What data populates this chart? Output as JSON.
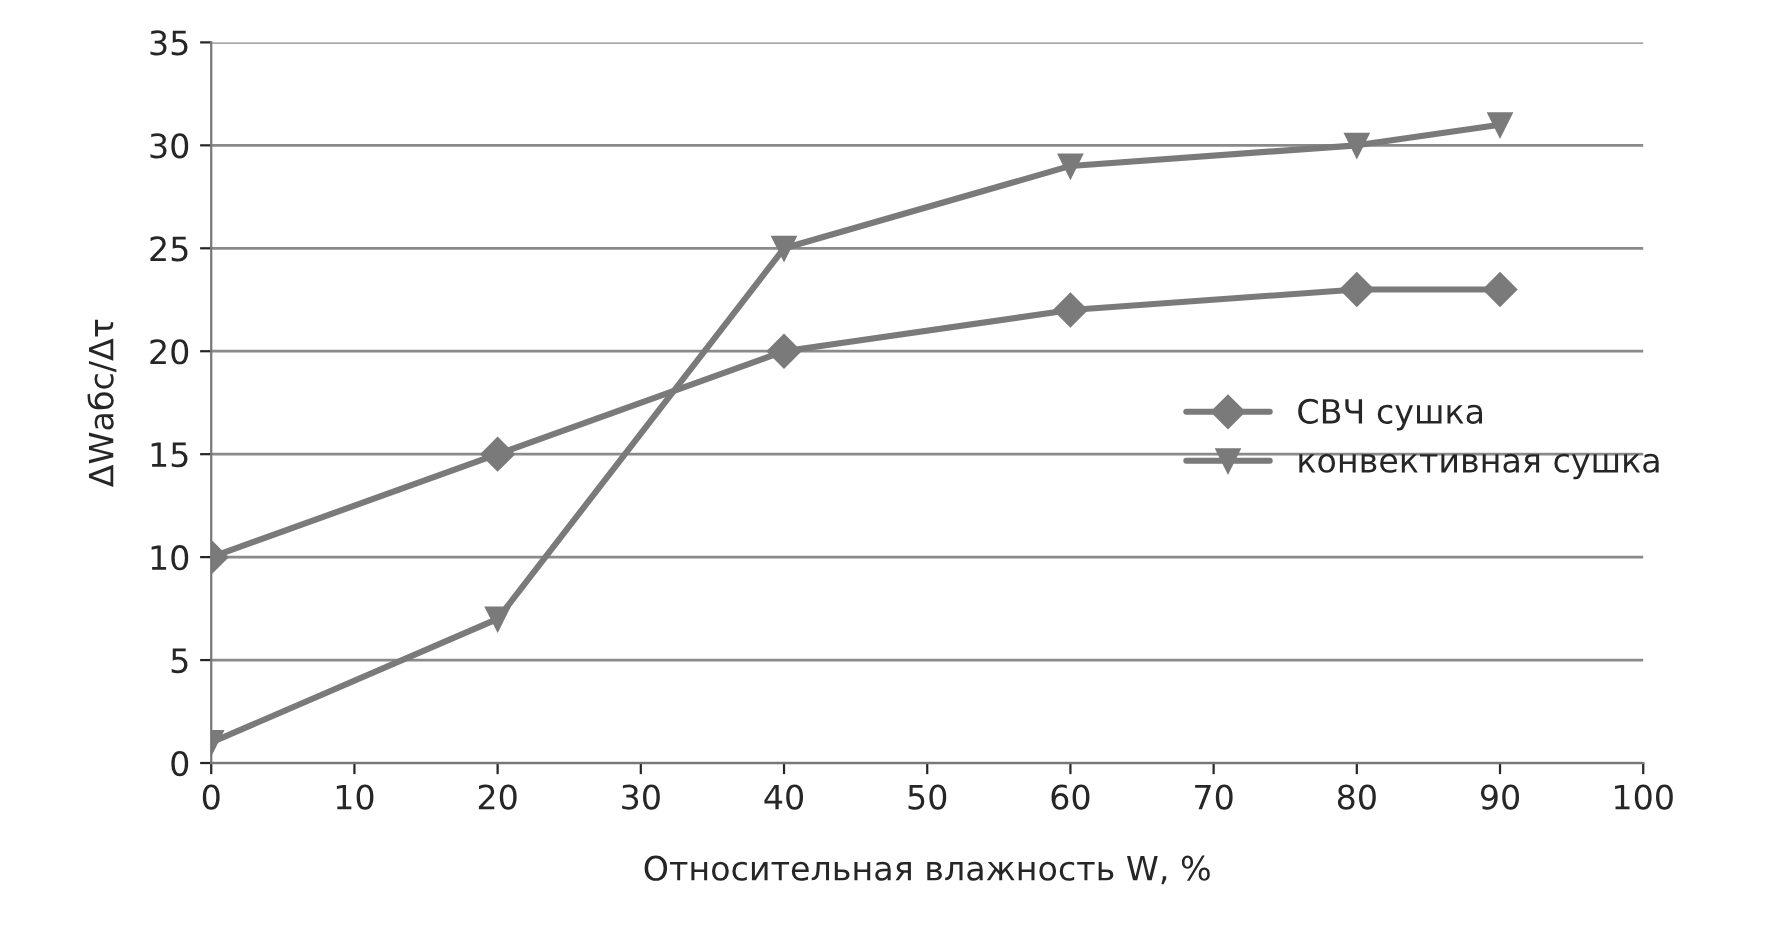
{
  "chart_data": {
    "type": "line",
    "xlabel": "Относительная влажность W, %",
    "ylabel": "ΔWабс/Δτ",
    "x": [
      0,
      20,
      40,
      60,
      80,
      90
    ],
    "series": [
      {
        "name": "СВЧ сушка",
        "color": "#7a7a7a",
        "marker": "diamond",
        "values": [
          10,
          15,
          20,
          22,
          23,
          23
        ]
      },
      {
        "name": "конвективная сушка",
        "color": "#7a7a7a",
        "marker": "triangle",
        "values": [
          1,
          7,
          25,
          29,
          30,
          31
        ]
      }
    ],
    "xlim": [
      0,
      100
    ],
    "xticks": [
      0,
      10,
      20,
      30,
      40,
      50,
      60,
      70,
      80,
      90,
      100
    ],
    "ylim": [
      0,
      35
    ],
    "yticks": [
      0,
      5,
      10,
      15,
      20,
      25,
      30,
      35
    ],
    "grid": "y",
    "legend": "right",
    "line_style": "solid"
  }
}
